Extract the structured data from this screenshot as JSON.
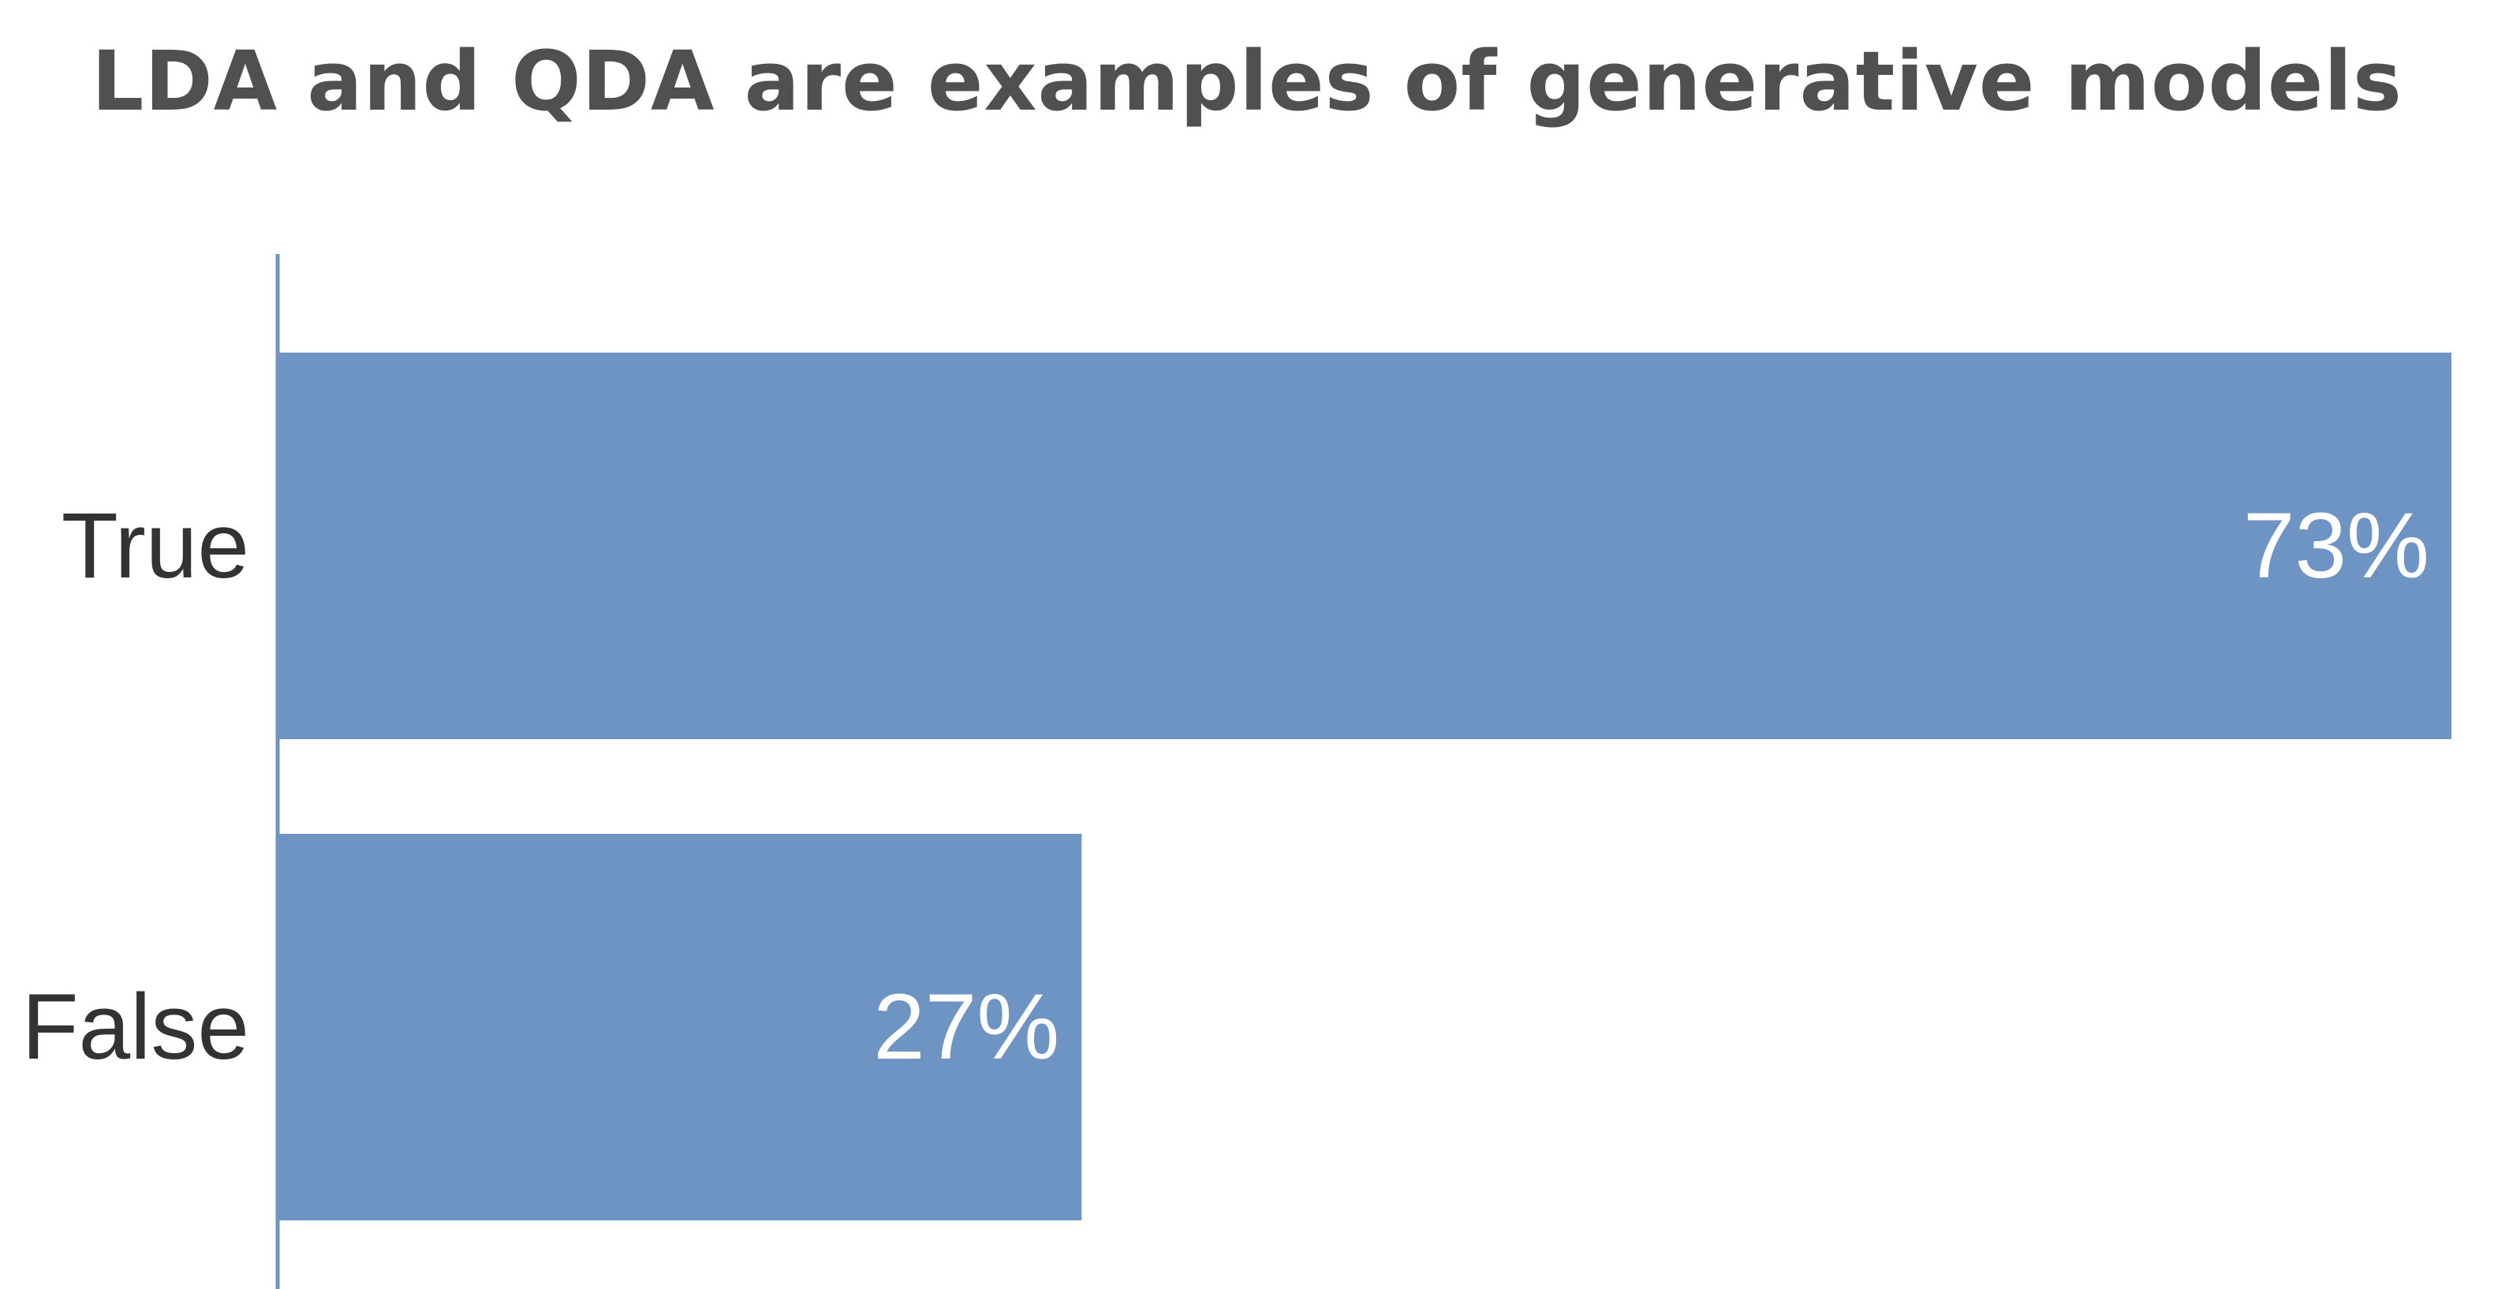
{
  "chart_data": {
    "type": "bar",
    "orientation": "horizontal",
    "title": "LDA and QDA are examples of generative models",
    "categories": [
      "True",
      "False"
    ],
    "values": [
      73,
      27
    ],
    "value_labels": [
      "73%",
      "27%"
    ],
    "unit": "%",
    "xlim": [
      0,
      73
    ],
    "grid": false,
    "legend": "none",
    "colors": {
      "bar": "#6e94c3",
      "axis": "#6e94c3",
      "title": "#505050",
      "category_label": "#333333",
      "value_label": "#ffffff"
    }
  }
}
